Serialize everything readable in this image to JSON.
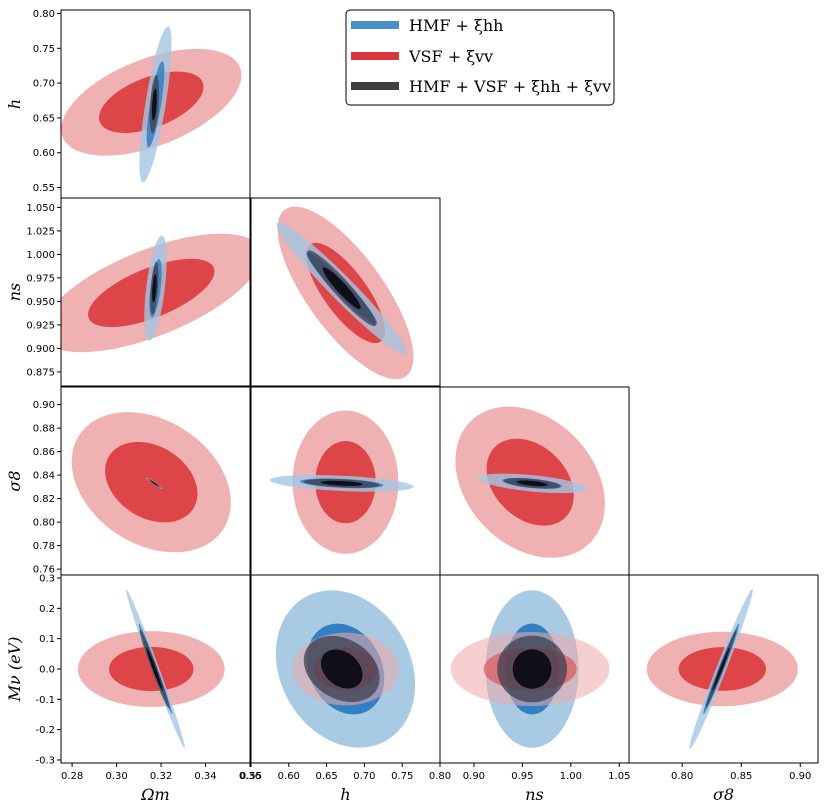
{
  "chart_data": {
    "type": "corner-plot",
    "title": "",
    "params": [
      {
        "id": "Om",
        "label": "Ωm",
        "ticks": [
          "0.28",
          "0.30",
          "0.32",
          "0.34",
          "0.36"
        ],
        "tick_values": [
          0.28,
          0.3,
          0.32,
          0.34,
          0.36
        ],
        "range": [
          0.275,
          0.36
        ]
      },
      {
        "id": "h",
        "label": "h",
        "ticks": [
          "0.55",
          "0.60",
          "0.65",
          "0.70",
          "0.75",
          "0.80"
        ],
        "tick_values": [
          0.55,
          0.6,
          0.65,
          0.7,
          0.75,
          0.8
        ],
        "range": [
          0.55,
          0.8
        ]
      },
      {
        "id": "ns",
        "label": "ns",
        "ticks": [
          "0.875",
          "0.900",
          "0.925",
          "0.950",
          "0.975",
          "1.000",
          "1.025",
          "1.050"
        ],
        "tick_values": [
          0.875,
          0.9,
          0.925,
          0.95,
          0.975,
          1.0,
          1.025,
          1.05
        ],
        "range": [
          0.86,
          1.06
        ]
      },
      {
        "id": "s8",
        "label": "σ8",
        "ticks": [
          "0.76",
          "0.78",
          "0.80",
          "0.82",
          "0.84",
          "0.86",
          "0.88",
          "0.90"
        ],
        "tick_values": [
          0.76,
          0.78,
          0.8,
          0.82,
          0.84,
          0.86,
          0.88,
          0.9
        ],
        "range": [
          0.755,
          0.915
        ]
      },
      {
        "id": "Mnu",
        "label": "Mν (eV)",
        "ticks": [
          "-0.3",
          "-0.2",
          "-0.1",
          "0.0",
          "0.1",
          "0.2",
          "0.3"
        ],
        "tick_values": [
          -0.3,
          -0.2,
          -0.1,
          0.0,
          0.1,
          0.2,
          0.3
        ],
        "range": [
          -0.31,
          0.31
        ]
      }
    ],
    "x_axis_labels": [
      "Ωm",
      "h",
      "ns",
      "σ8"
    ],
    "y_axis_labels": [
      "h",
      "ns",
      "σ8",
      "Mν (eV)"
    ],
    "x_tick_labels": [
      [
        "0.28",
        "0.30",
        "0.32",
        "0.34",
        "0.36"
      ],
      [
        "0.55",
        "0.60",
        "0.65",
        "0.70",
        "0.75",
        "0.80"
      ],
      [
        "0.90",
        "0.95",
        "1.00",
        "1.05"
      ],
      [
        "0.80",
        "0.85",
        "0.90"
      ]
    ],
    "x_tick_values": [
      [
        0.28,
        0.3,
        0.32,
        0.34,
        0.36
      ],
      [
        0.55,
        0.6,
        0.65,
        0.7,
        0.75,
        0.8
      ],
      [
        0.9,
        0.95,
        1.0,
        1.05
      ],
      [
        0.8,
        0.85,
        0.9
      ]
    ],
    "x_ranges": [
      [
        0.275,
        0.36
      ],
      [
        0.55,
        0.8
      ],
      [
        0.865,
        1.06
      ],
      [
        0.755,
        0.915
      ]
    ],
    "y_tick_labels": [
      [
        "0.55",
        "0.60",
        "0.65",
        "0.70",
        "0.75",
        "0.80"
      ],
      [
        "0.875",
        "0.900",
        "0.925",
        "0.950",
        "0.975",
        "1.000",
        "1.025",
        "1.050"
      ],
      [
        "0.76",
        "0.78",
        "0.80",
        "0.82",
        "0.84",
        "0.86",
        "0.88",
        "0.90"
      ],
      [
        "-0.3",
        "-0.2",
        "-0.1",
        "0.0",
        "0.1",
        "0.2",
        "0.3"
      ]
    ],
    "y_tick_values": [
      [
        0.55,
        0.6,
        0.65,
        0.7,
        0.75,
        0.8
      ],
      [
        0.875,
        0.9,
        0.925,
        0.95,
        0.975,
        1.0,
        1.025,
        1.05
      ],
      [
        0.76,
        0.78,
        0.8,
        0.82,
        0.84,
        0.86,
        0.88,
        0.9
      ],
      [
        -0.3,
        -0.2,
        -0.1,
        0.0,
        0.1,
        0.2,
        0.3
      ]
    ],
    "y_ranges": [
      [
        0.535,
        0.805
      ],
      [
        0.86,
        1.06
      ],
      [
        0.755,
        0.915
      ],
      [
        -0.31,
        0.31
      ]
    ],
    "legend": {
      "placement": "top-right",
      "entries": [
        {
          "label": "HMF + ξhh",
          "color": "#4a90c8"
        },
        {
          "label": "VSF + ξvv",
          "color": "#d9363e"
        },
        {
          "label": "HMF + VSF + ξhh + ξvv",
          "color": "#404040"
        }
      ]
    },
    "series_colors": {
      "HMF": {
        "inner": "#2a7bbf",
        "outer": "#a4c7e2"
      },
      "VSF": {
        "inner": "#dc3c40",
        "outer": "#efaaac"
      },
      "Combined": {
        "inner": "#0c0c14",
        "outer": "#3f3f4f"
      }
    },
    "panels": [
      {
        "row": 0,
        "col": 0,
        "ellipses": [
          {
            "series": "VSF",
            "level": 2,
            "cx": 0.3156,
            "cy": 0.6725,
            "rx": 0.0335,
            "ry": 0.08,
            "angle": -0.32
          },
          {
            "series": "VSF",
            "level": 1,
            "cx": 0.3156,
            "cy": 0.6725,
            "rx": 0.0195,
            "ry": 0.046,
            "angle": -0.32
          },
          {
            "series": "HMF",
            "level": 2,
            "cx": 0.3175,
            "cy": 0.6695,
            "rx": 0.0046,
            "ry": 0.112,
            "angle": -0.05
          },
          {
            "series": "HMF",
            "level": 1,
            "cx": 0.3175,
            "cy": 0.6695,
            "rx": 0.0025,
            "ry": 0.062,
            "angle": -0.05
          },
          {
            "series": "Combined",
            "level": 2,
            "cx": 0.317,
            "cy": 0.6695,
            "rx": 0.0019,
            "ry": 0.042,
            "angle": -0.02
          },
          {
            "series": "Combined",
            "level": 1,
            "cx": 0.317,
            "cy": 0.6695,
            "rx": 0.001,
            "ry": 0.023,
            "angle": -0.02
          }
        ]
      },
      {
        "row": 1,
        "col": 0,
        "ellipses": [
          {
            "series": "VSF",
            "level": 2,
            "cx": 0.3156,
            "cy": 0.959,
            "rx": 0.033,
            "ry": 0.073,
            "angle": -0.6
          },
          {
            "series": "VSF",
            "level": 1,
            "cx": 0.3156,
            "cy": 0.959,
            "rx": 0.019,
            "ry": 0.042,
            "angle": -0.6
          },
          {
            "series": "HMF",
            "level": 2,
            "cx": 0.3175,
            "cy": 0.964,
            "rx": 0.0042,
            "ry": 0.056,
            "angle": -0.05
          },
          {
            "series": "HMF",
            "level": 1,
            "cx": 0.3175,
            "cy": 0.964,
            "rx": 0.0023,
            "ry": 0.031,
            "angle": -0.05
          },
          {
            "series": "Combined",
            "level": 2,
            "cx": 0.317,
            "cy": 0.964,
            "rx": 0.0016,
            "ry": 0.028,
            "angle": -0.03
          },
          {
            "series": "Combined",
            "level": 1,
            "cx": 0.317,
            "cy": 0.964,
            "rx": 0.0009,
            "ry": 0.015,
            "angle": -0.03
          }
        ]
      },
      {
        "row": 1,
        "col": 1,
        "ellipses": [
          {
            "series": "VSF",
            "level": 2,
            "cx": 0.675,
            "cy": 0.959,
            "rx": 0.12,
            "ry": 0.046,
            "angle": -0.8
          },
          {
            "series": "VSF",
            "level": 1,
            "cx": 0.675,
            "cy": 0.959,
            "rx": 0.07,
            "ry": 0.026,
            "angle": -0.8
          },
          {
            "series": "HMF",
            "level": 2,
            "cx": 0.67,
            "cy": 0.964,
            "rx": 0.11,
            "ry": 0.014,
            "angle": -0.68
          },
          {
            "series": "HMF",
            "level": 1,
            "cx": 0.67,
            "cy": 0.964,
            "rx": 0.06,
            "ry": 0.008,
            "angle": -0.68
          },
          {
            "series": "Combined",
            "level": 2,
            "cx": 0.67,
            "cy": 0.964,
            "rx": 0.06,
            "ry": 0.01,
            "angle": -0.72
          },
          {
            "series": "Combined",
            "level": 1,
            "cx": 0.67,
            "cy": 0.964,
            "rx": 0.033,
            "ry": 0.006,
            "angle": -0.72
          }
        ]
      },
      {
        "row": 2,
        "col": 0,
        "ellipses": [
          {
            "series": "VSF",
            "level": 2,
            "cx": 0.3156,
            "cy": 0.834,
            "rx": 0.0335,
            "ry": 0.061,
            "angle": 0.25
          },
          {
            "series": "VSF",
            "level": 1,
            "cx": 0.3156,
            "cy": 0.834,
            "rx": 0.0195,
            "ry": 0.035,
            "angle": 0.25
          },
          {
            "series": "HMF",
            "level": 2,
            "cx": 0.317,
            "cy": 0.833,
            "rx": 0.006,
            "ry": 0.0008,
            "angle": -0.92
          },
          {
            "series": "HMF",
            "level": 1,
            "cx": 0.317,
            "cy": 0.833,
            "rx": 0.0035,
            "ry": 0.0005,
            "angle": -0.92
          },
          {
            "series": "Combined",
            "level": 2,
            "cx": 0.317,
            "cy": 0.833,
            "rx": 0.005,
            "ry": 0.0006,
            "angle": -0.92
          },
          {
            "series": "Combined",
            "level": 1,
            "cx": 0.317,
            "cy": 0.833,
            "rx": 0.003,
            "ry": 0.0004,
            "angle": -0.92
          }
        ]
      },
      {
        "row": 2,
        "col": 1,
        "ellipses": [
          {
            "series": "VSF",
            "level": 2,
            "cx": 0.675,
            "cy": 0.834,
            "rx": 0.07,
            "ry": 0.061,
            "angle": 0.0
          },
          {
            "series": "VSF",
            "level": 1,
            "cx": 0.675,
            "cy": 0.834,
            "rx": 0.04,
            "ry": 0.035,
            "angle": 0.0
          },
          {
            "series": "HMF",
            "level": 2,
            "cx": 0.67,
            "cy": 0.833,
            "rx": 0.095,
            "ry": 0.0065,
            "angle": -0.03
          },
          {
            "series": "HMF",
            "level": 1,
            "cx": 0.67,
            "cy": 0.833,
            "rx": 0.055,
            "ry": 0.0038,
            "angle": -0.03
          },
          {
            "series": "Combined",
            "level": 2,
            "cx": 0.67,
            "cy": 0.833,
            "rx": 0.05,
            "ry": 0.0035,
            "angle": -0.03
          },
          {
            "series": "Combined",
            "level": 1,
            "cx": 0.67,
            "cy": 0.833,
            "rx": 0.028,
            "ry": 0.002,
            "angle": -0.03
          }
        ]
      },
      {
        "row": 2,
        "col": 2,
        "ellipses": [
          {
            "series": "VSF",
            "level": 2,
            "cx": 0.958,
            "cy": 0.834,
            "rx": 0.082,
            "ry": 0.058,
            "angle": -0.5
          },
          {
            "series": "VSF",
            "level": 1,
            "cx": 0.958,
            "cy": 0.834,
            "rx": 0.048,
            "ry": 0.033,
            "angle": -0.5
          },
          {
            "series": "HMF",
            "level": 2,
            "cx": 0.96,
            "cy": 0.833,
            "rx": 0.056,
            "ry": 0.007,
            "angle": -0.08
          },
          {
            "series": "HMF",
            "level": 1,
            "cx": 0.96,
            "cy": 0.833,
            "rx": 0.031,
            "ry": 0.004,
            "angle": -0.08
          },
          {
            "series": "Combined",
            "level": 2,
            "cx": 0.96,
            "cy": 0.833,
            "rx": 0.029,
            "ry": 0.0038,
            "angle": -0.08
          },
          {
            "series": "Combined",
            "level": 1,
            "cx": 0.96,
            "cy": 0.833,
            "rx": 0.016,
            "ry": 0.0021,
            "angle": -0.08
          }
        ]
      },
      {
        "row": 3,
        "col": 0,
        "ellipses": [
          {
            "series": "VSF",
            "level": 2,
            "cx": 0.3156,
            "cy": 0.0,
            "rx": 0.033,
            "ry": 0.125,
            "angle": 0.0
          },
          {
            "series": "VSF",
            "level": 1,
            "cx": 0.3156,
            "cy": 0.0,
            "rx": 0.019,
            "ry": 0.073,
            "angle": 0.0
          },
          {
            "series": "HMF",
            "level": 2,
            "cx": 0.3175,
            "cy": 0.0,
            "rx": 0.0018,
            "ry": 0.262,
            "angle": 0.05
          },
          {
            "series": "HMF",
            "level": 1,
            "cx": 0.3175,
            "cy": 0.0,
            "rx": 0.001,
            "ry": 0.15,
            "angle": 0.05
          },
          {
            "series": "Combined",
            "level": 2,
            "cx": 0.317,
            "cy": 0.0,
            "rx": 0.0014,
            "ry": 0.13,
            "angle": 0.05
          },
          {
            "series": "Combined",
            "level": 1,
            "cx": 0.317,
            "cy": 0.0,
            "rx": 0.0008,
            "ry": 0.072,
            "angle": 0.05
          }
        ]
      },
      {
        "row": 3,
        "col": 1,
        "ellipses": [
          {
            "series": "HMF",
            "level": 2,
            "cx": 0.675,
            "cy": 0.0,
            "rx": 0.09,
            "ry": 0.26,
            "angle": 0.08
          },
          {
            "series": "HMF",
            "level": 1,
            "cx": 0.675,
            "cy": 0.0,
            "rx": 0.05,
            "ry": 0.15,
            "angle": 0.08
          },
          {
            "series": "VSF",
            "level": 2,
            "cx": 0.675,
            "cy": 0.0,
            "rx": 0.07,
            "ry": 0.12,
            "angle": 0.0
          },
          {
            "series": "VSF",
            "level": 1,
            "cx": 0.675,
            "cy": 0.0,
            "rx": 0.042,
            "ry": 0.07,
            "angle": 0.0
          },
          {
            "series": "Combined",
            "level": 2,
            "cx": 0.67,
            "cy": 0.0,
            "rx": 0.048,
            "ry": 0.11,
            "angle": 0.15
          },
          {
            "series": "Combined",
            "level": 1,
            "cx": 0.67,
            "cy": 0.0,
            "rx": 0.026,
            "ry": 0.065,
            "angle": 0.15
          }
        ]
      },
      {
        "row": 3,
        "col": 2,
        "ellipses": [
          {
            "series": "HMF",
            "level": 2,
            "cx": 0.96,
            "cy": 0.0,
            "rx": 0.048,
            "ry": 0.26,
            "angle": 0.0
          },
          {
            "series": "HMF",
            "level": 1,
            "cx": 0.96,
            "cy": 0.0,
            "rx": 0.028,
            "ry": 0.15,
            "angle": 0.0
          },
          {
            "series": "VSF",
            "level": 2,
            "cx": 0.958,
            "cy": 0.0,
            "rx": 0.082,
            "ry": 0.122,
            "angle": 0.0
          },
          {
            "series": "VSF",
            "level": 1,
            "cx": 0.958,
            "cy": 0.0,
            "rx": 0.048,
            "ry": 0.07,
            "angle": 0.0
          },
          {
            "series": "Combined",
            "level": 2,
            "cx": 0.96,
            "cy": 0.0,
            "rx": 0.036,
            "ry": 0.11,
            "angle": 0.0
          },
          {
            "series": "Combined",
            "level": 1,
            "cx": 0.96,
            "cy": 0.0,
            "rx": 0.02,
            "ry": 0.065,
            "angle": 0.0
          }
        ]
      },
      {
        "row": 3,
        "col": 3,
        "ellipses": [
          {
            "series": "VSF",
            "level": 2,
            "cx": 0.834,
            "cy": 0.0,
            "rx": 0.064,
            "ry": 0.123,
            "angle": 0.0
          },
          {
            "series": "VSF",
            "level": 1,
            "cx": 0.834,
            "cy": 0.0,
            "rx": 0.037,
            "ry": 0.072,
            "angle": 0.0
          },
          {
            "series": "HMF",
            "level": 2,
            "cx": 0.833,
            "cy": 0.0,
            "rx": 0.0045,
            "ry": 0.265,
            "angle": -0.1
          },
          {
            "series": "HMF",
            "level": 1,
            "cx": 0.833,
            "cy": 0.0,
            "rx": 0.0025,
            "ry": 0.15,
            "angle": -0.1
          },
          {
            "series": "Combined",
            "level": 2,
            "cx": 0.833,
            "cy": 0.0,
            "rx": 0.002,
            "ry": 0.13,
            "angle": -0.1
          },
          {
            "series": "Combined",
            "level": 1,
            "cx": 0.833,
            "cy": 0.0,
            "rx": 0.0011,
            "ry": 0.072,
            "angle": -0.1
          }
        ]
      }
    ]
  }
}
